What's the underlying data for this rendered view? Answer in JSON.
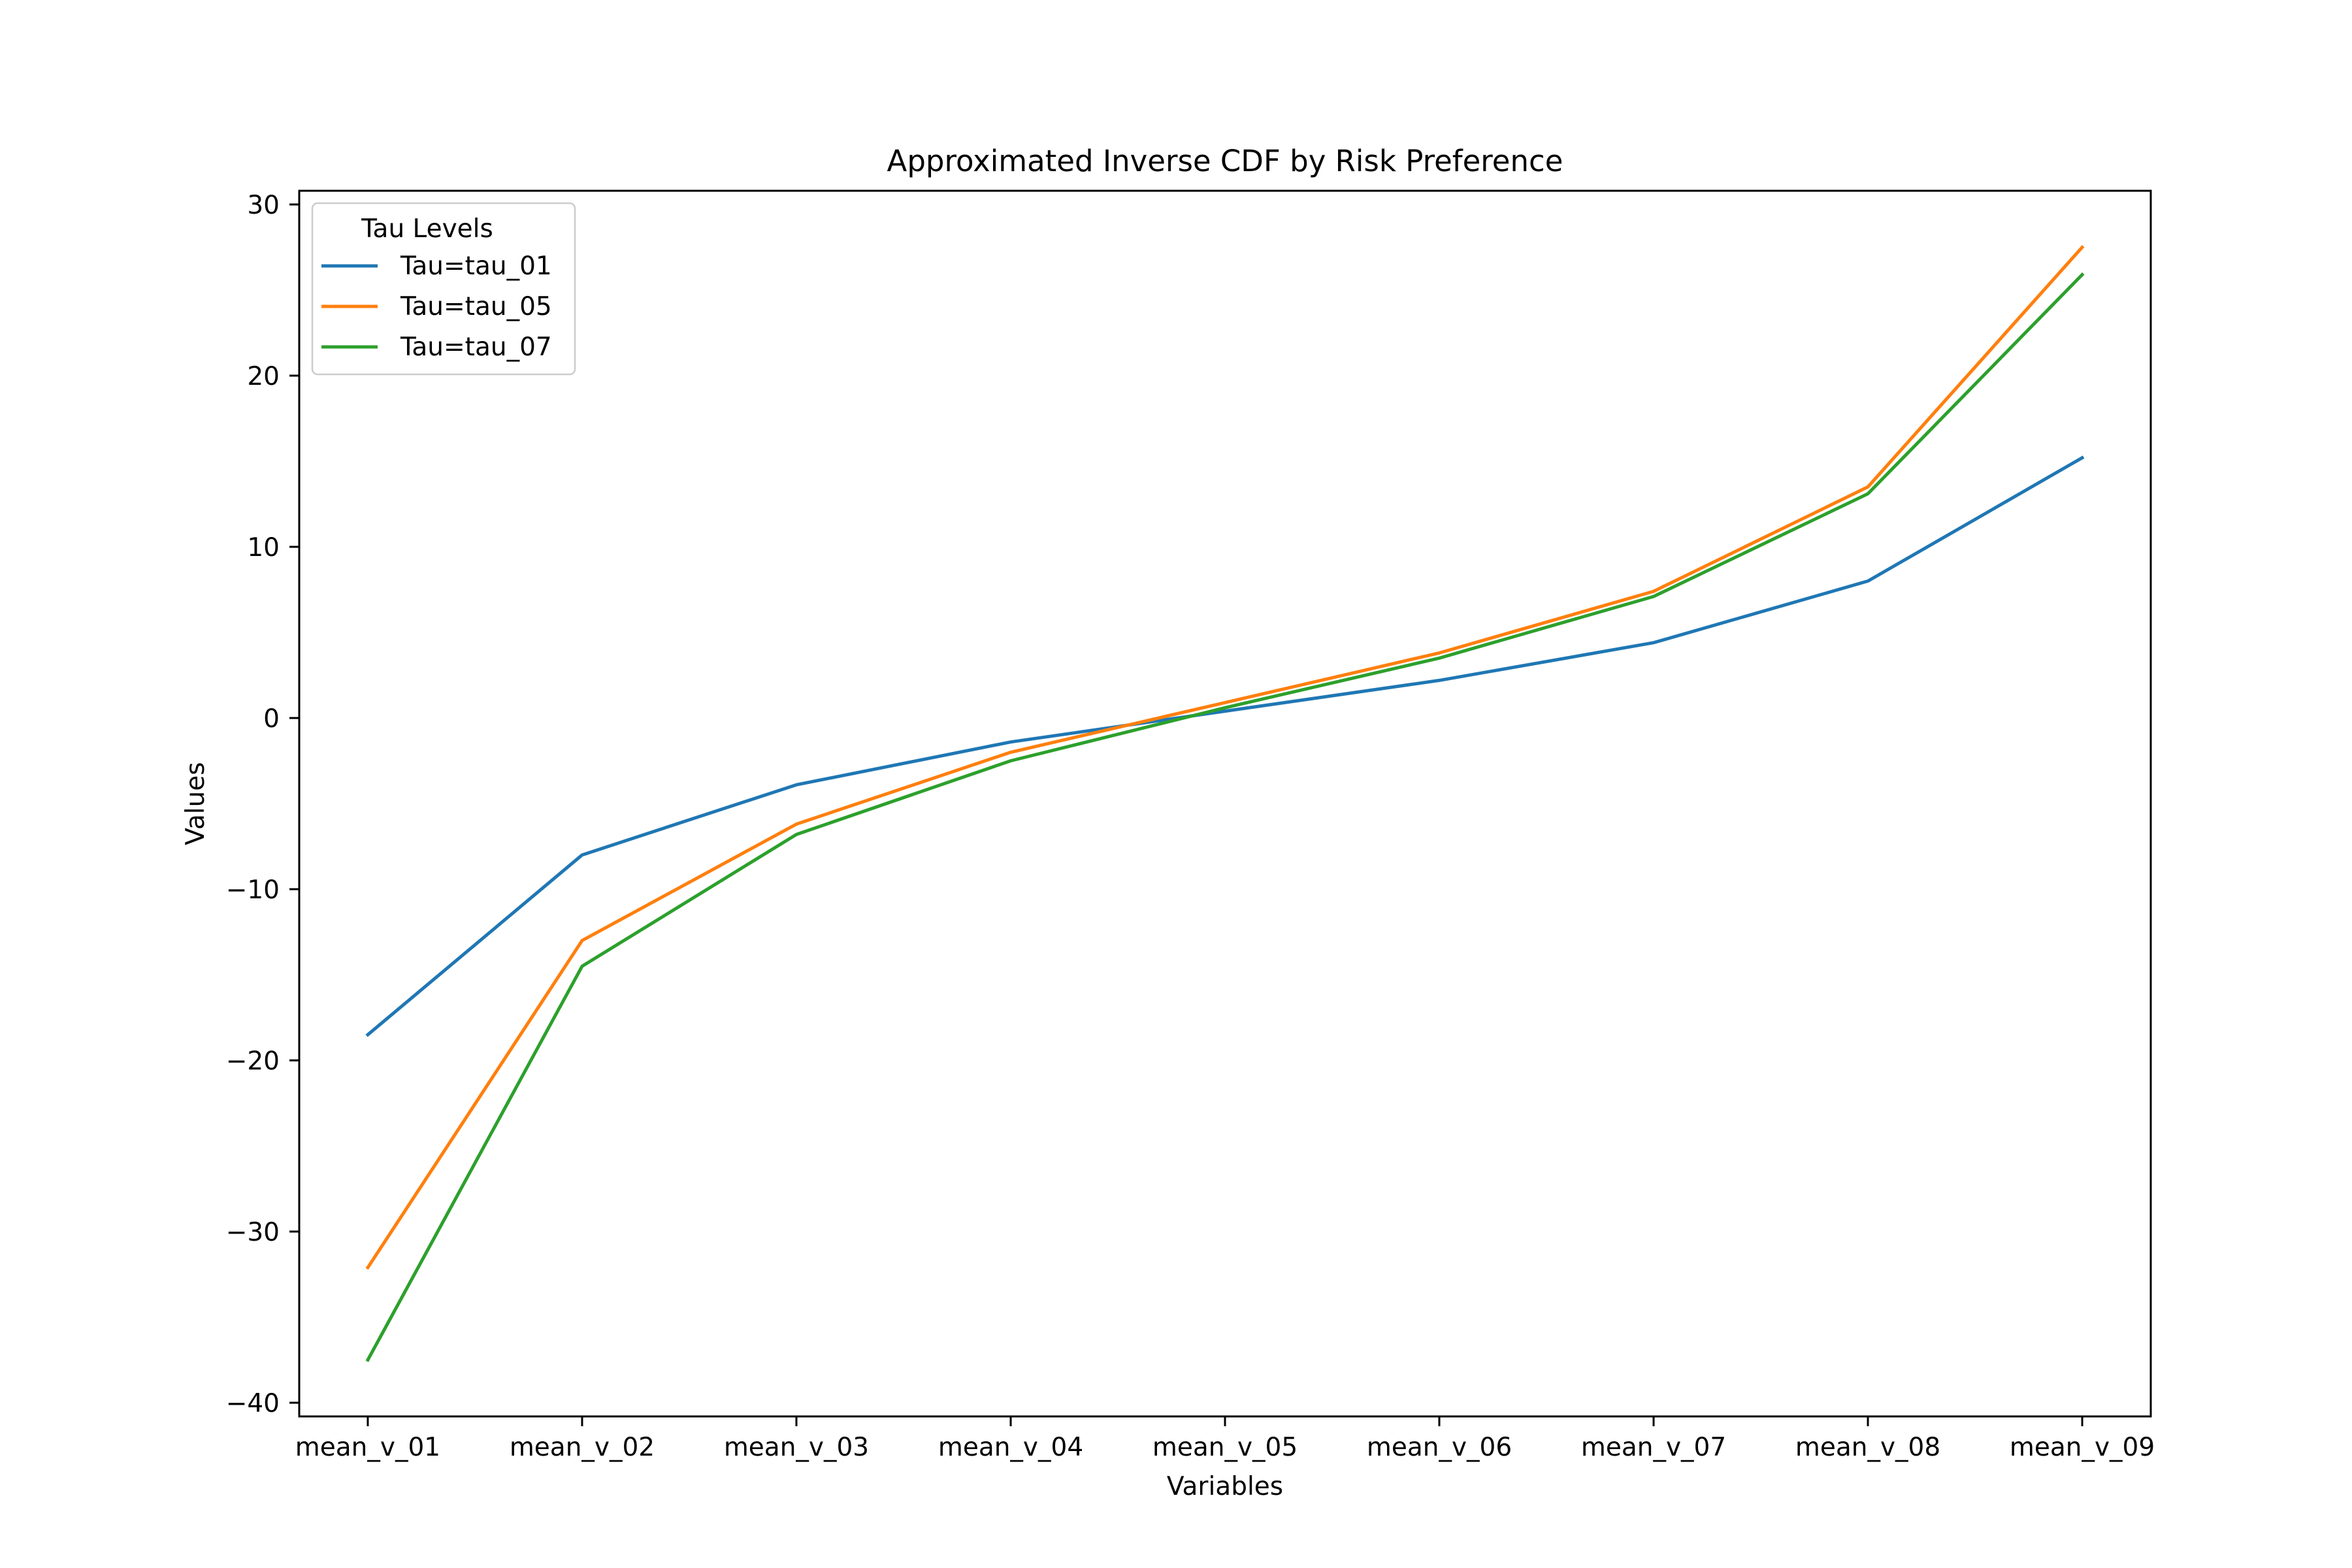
{
  "chart_data": {
    "type": "line",
    "title": "Approximated Inverse CDF by Risk Preference",
    "xlabel": "Variables",
    "ylabel": "Values",
    "categories": [
      "mean_v_01",
      "mean_v_02",
      "mean_v_03",
      "mean_v_04",
      "mean_v_05",
      "mean_v_06",
      "mean_v_07",
      "mean_v_08",
      "mean_v_09"
    ],
    "ylim": [
      -40.8,
      30.8
    ],
    "yticks": [
      -40,
      -30,
      -20,
      -10,
      0,
      10,
      20,
      30
    ],
    "ytick_labels": [
      "−40",
      "−30",
      "−20",
      "−10",
      "0",
      "10",
      "20",
      "30"
    ],
    "grid": false,
    "legend": {
      "title": "Tau Levels",
      "position": "top-left"
    },
    "series": [
      {
        "name": "Tau=tau_01",
        "color": "#1f77b4",
        "values": [
          -18.5,
          -8.0,
          -3.9,
          -1.4,
          0.4,
          2.2,
          4.4,
          8.0,
          15.2
        ]
      },
      {
        "name": "Tau=tau_05",
        "color": "#ff7f0e",
        "values": [
          -32.1,
          -13.0,
          -6.2,
          -2.0,
          0.9,
          3.8,
          7.4,
          13.5,
          27.5
        ]
      },
      {
        "name": "Tau=tau_07",
        "color": "#2ca02c",
        "values": [
          -37.5,
          -14.5,
          -6.8,
          -2.5,
          0.6,
          3.5,
          7.1,
          13.1,
          25.9
        ]
      }
    ]
  }
}
